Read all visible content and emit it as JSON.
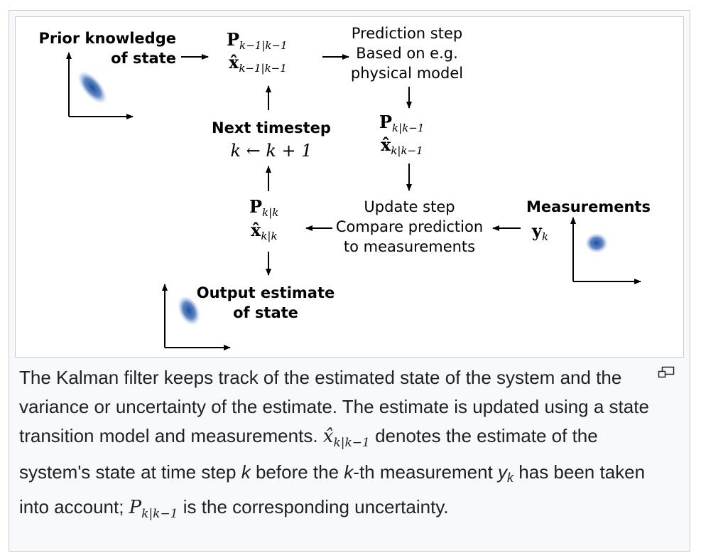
{
  "diagram": {
    "prior_label_line1": "Prior knowledge",
    "prior_label_line2": "of state",
    "prediction_title": "Prediction step",
    "prediction_line1": "Based on e.g.",
    "prediction_line2": "physical model",
    "next_title": "Next timestep",
    "next_formula": "k ← k + 1",
    "update_title": "Update step",
    "update_line1": "Compare prediction",
    "update_line2": "to measurements",
    "measurements_title": "Measurements",
    "output_line1": "Output estimate",
    "output_line2": "of state",
    "p_prev": {
      "sym": "P",
      "sub": "k−1|k−1"
    },
    "x_prev": {
      "sym": "x̂",
      "sub": "k−1|k−1"
    },
    "p_pred": {
      "sym": "P",
      "sub": "k|k−1"
    },
    "x_pred": {
      "sym": "x̂",
      "sub": "k|k−1"
    },
    "p_upd": {
      "sym": "P",
      "sub": "k|k"
    },
    "x_upd": {
      "sym": "x̂",
      "sub": "k|k"
    },
    "y_meas": {
      "sym": "y",
      "sub": "k"
    },
    "blob_color": "#1f4e9c"
  },
  "caption": {
    "t1": "The Kalman filter keeps track of the estimated state of the system and the variance or uncertainty of the estimate. The estimate is updated using a state transition model and measurements. ",
    "m1_sym": "x̂",
    "m1_sub": "k|k−1",
    "t2": " denotes the estimate of the system's state at time step ",
    "k1": "k",
    "t3": " before the ",
    "k2": "k",
    "t4": "-th measurement ",
    "y_sym": "y",
    "y_sub": "k",
    "t5": " has been taken into account; ",
    "m2_sym": "P",
    "m2_sub": "k|k−1",
    "t6": " is the corresponding uncertainty."
  },
  "icons": {
    "magnify": "magnify-icon"
  }
}
